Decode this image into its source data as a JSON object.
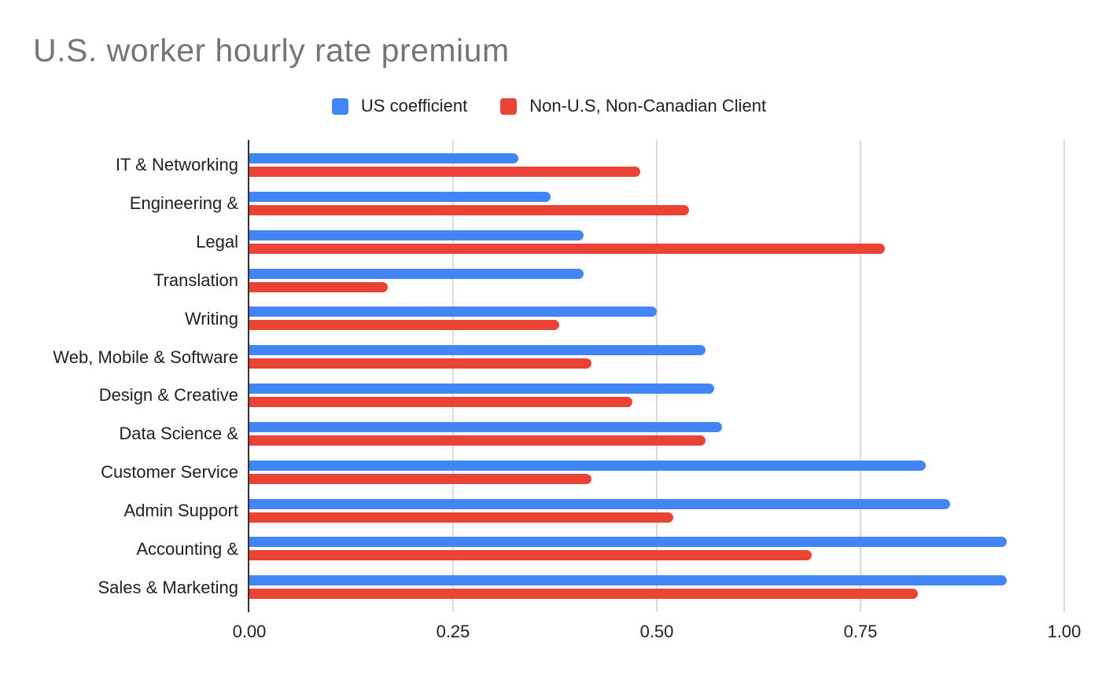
{
  "colors": {
    "title_text": "#757575",
    "label_text": "#212121",
    "axis_line": "#333333",
    "gridline": "#dadada",
    "us_series": "#4285F4",
    "non_us_series": "#EA4335",
    "background": "#ffffff"
  },
  "chart_data": {
    "type": "bar",
    "orientation": "horizontal",
    "title": "U.S. worker hourly rate premium",
    "categories": [
      "IT & Networking",
      "Engineering &",
      "Legal",
      "Translation",
      "Writing",
      "Web, Mobile & Software",
      "Design & Creative",
      "Data Science &",
      "Customer Service",
      "Admin Support",
      "Accounting &",
      "Sales & Marketing"
    ],
    "series": [
      {
        "name": "US coefficient",
        "color": "#4285F4",
        "values": [
          0.33,
          0.37,
          0.41,
          0.41,
          0.5,
          0.56,
          0.57,
          0.58,
          0.83,
          0.86,
          0.93,
          0.93
        ]
      },
      {
        "name": "Non-U.S, Non-Canadian Client",
        "color": "#EA4335",
        "values": [
          0.48,
          0.54,
          0.78,
          0.17,
          0.38,
          0.42,
          0.47,
          0.56,
          0.42,
          0.52,
          0.69,
          0.82
        ]
      }
    ],
    "xlabel": "",
    "ylabel": "",
    "xlim": [
      0,
      1
    ],
    "x_ticks": [
      "0.00",
      "0.25",
      "0.50",
      "0.75",
      "1.00"
    ],
    "grid": true,
    "legend_position": "top"
  }
}
